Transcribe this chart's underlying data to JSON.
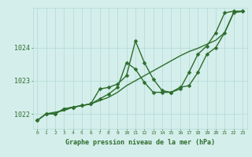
{
  "xlabel": "Graphe pression niveau de la mer (hPa)",
  "hours": [
    0,
    1,
    2,
    3,
    4,
    5,
    6,
    7,
    8,
    9,
    10,
    11,
    12,
    13,
    14,
    15,
    16,
    17,
    18,
    19,
    20,
    21,
    22,
    23
  ],
  "line1": [
    1021.8,
    1022.0,
    1022.0,
    1022.15,
    1022.2,
    1022.25,
    1022.3,
    1022.75,
    1022.8,
    1022.9,
    1023.15,
    1024.2,
    1023.55,
    1023.05,
    1022.7,
    1022.65,
    1022.8,
    1022.85,
    1023.25,
    1023.8,
    1024.0,
    1024.45,
    1025.05,
    1025.1
  ],
  "line2": [
    1021.8,
    1022.0,
    1022.0,
    1022.15,
    1022.2,
    1022.25,
    1022.3,
    1022.45,
    1022.6,
    1022.8,
    1023.55,
    1023.35,
    1022.95,
    1022.65,
    1022.65,
    1022.65,
    1022.75,
    1023.25,
    1023.8,
    1024.05,
    1024.45,
    1025.05,
    1025.1,
    1025.1
  ],
  "line3": [
    1021.8,
    1022.0,
    1022.05,
    1022.1,
    1022.2,
    1022.25,
    1022.3,
    1022.4,
    1022.5,
    1022.65,
    1022.85,
    1023.0,
    1023.15,
    1023.3,
    1023.45,
    1023.6,
    1023.75,
    1023.88,
    1023.98,
    1024.1,
    1024.22,
    1024.45,
    1025.05,
    1025.1
  ],
  "line_color": "#2d6e2d",
  "bg_color": "#d4eeeb",
  "grid_color": "#b8ddd8",
  "text_color": "#2d6e2d",
  "ylim": [
    1021.55,
    1025.2
  ],
  "yticks": [
    1022,
    1023,
    1024
  ],
  "markersize": 2.5,
  "linewidth": 1.0
}
